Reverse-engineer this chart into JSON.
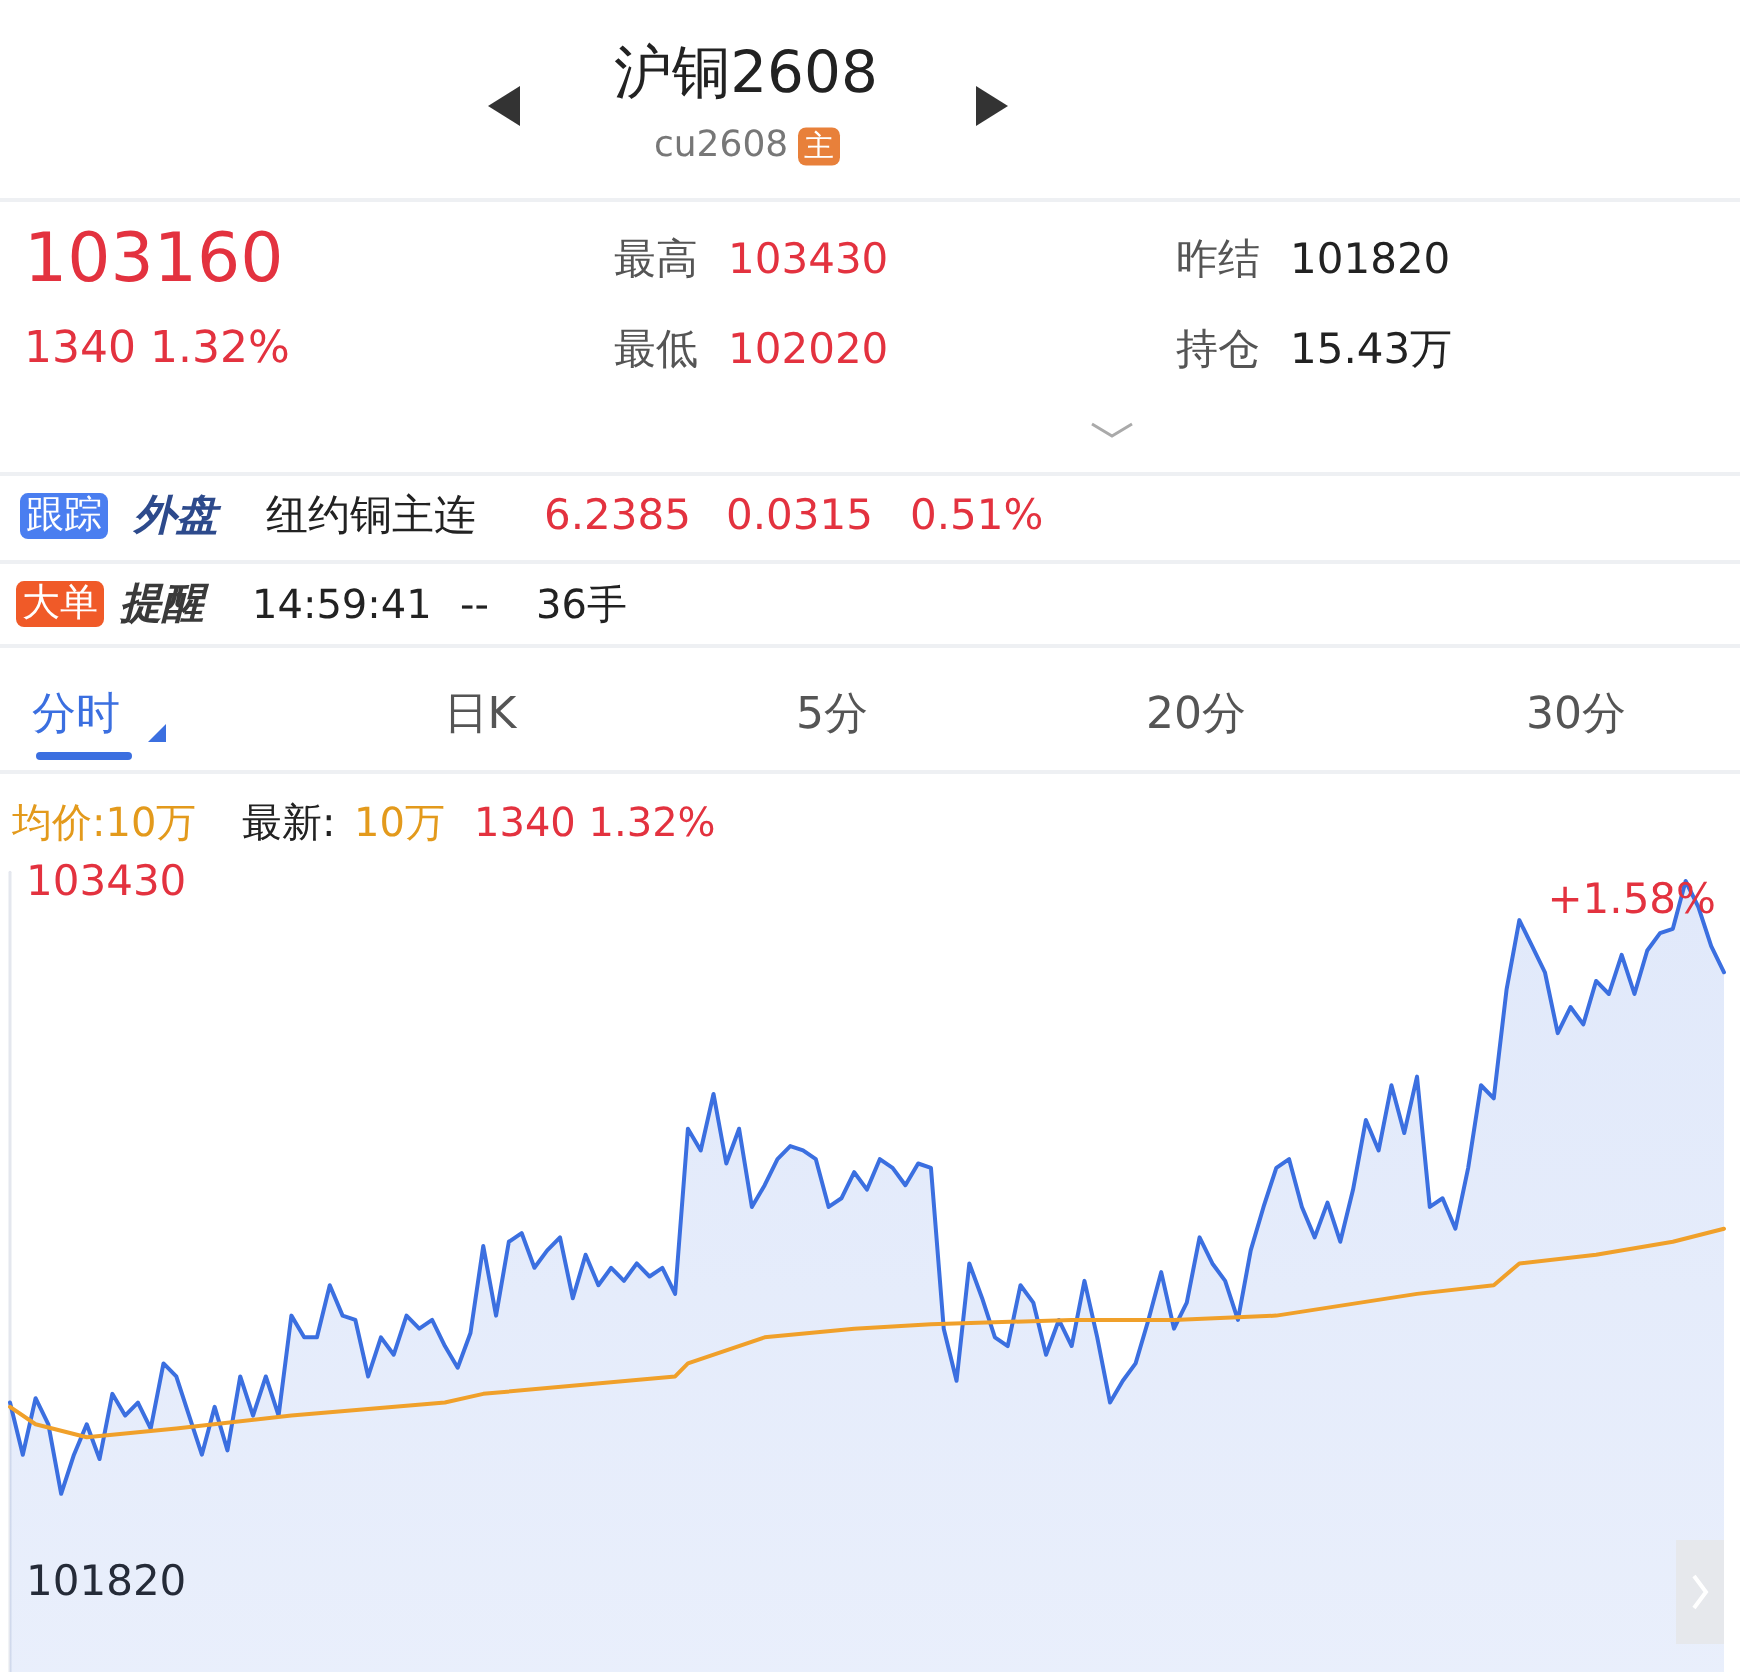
{
  "chart_data": {
    "type": "area",
    "title": "沪铜2608",
    "subtitle": "cu2608",
    "annotations": [
      "主",
      "103160",
      "1340 1.32%",
      "最高",
      "103430",
      "最低",
      "102020",
      "昨结",
      "101820",
      "持仓",
      "15.43万",
      "跟踪",
      "外盘",
      "纽约铜主连",
      "6.2385",
      "0.0315",
      "0.51%",
      "大单",
      "提醒",
      "14:59:41",
      "--",
      "36手",
      "分时",
      "日K",
      "5分",
      "20分",
      "30分",
      "均价:10万",
      "最新:",
      "10万",
      "1340 1.32%",
      "+1.58%"
    ],
    "categories": [
      null,
      null,
      null,
      null,
      null,
      null,
      null,
      null,
      null,
      null,
      null,
      null,
      null,
      null,
      null,
      null,
      null,
      null,
      null,
      null,
      null,
      null,
      null,
      null,
      null,
      null,
      null,
      null,
      null,
      null,
      null,
      null,
      null,
      null,
      null,
      null,
      null,
      null,
      null,
      null,
      null,
      null,
      null,
      null,
      null,
      null,
      null,
      null,
      null,
      null,
      null,
      null,
      null,
      null,
      null,
      null,
      null,
      null,
      null,
      null,
      null,
      null,
      null,
      null,
      null,
      null,
      null,
      null,
      null,
      null,
      null,
      null,
      null,
      null,
      null,
      null,
      null,
      null,
      null,
      null,
      null,
      null,
      null,
      null,
      null,
      null,
      null,
      null,
      null,
      null,
      null,
      null,
      null,
      null,
      null,
      null,
      null,
      null,
      null,
      null,
      null,
      null,
      null,
      null,
      null,
      null,
      null,
      null,
      null,
      null,
      null,
      null,
      null,
      null,
      null,
      null,
      null,
      null,
      null,
      null,
      null,
      null,
      null,
      null,
      null,
      null,
      null,
      null,
      null,
      null,
      null,
      null,
      null,
      null,
      null
    ],
    "ylim": [
      101610,
      103450
    ],
    "yticks": [
      103430,
      101820
    ],
    "tick_labels": "y",
    "series": [
      {
        "type": "area",
        "color": "#3b6fe0",
        "values": [
          102230,
          102110,
          102240,
          102180,
          102020,
          102110,
          102180,
          102100,
          102250,
          102200,
          102230,
          102170,
          102320,
          102290,
          102200,
          102110,
          102220,
          102120,
          102290,
          102200,
          102290,
          102200,
          102430,
          102380,
          102380,
          102500,
          102430,
          102420,
          102290,
          102380,
          102340,
          102430,
          102400,
          102420,
          102360,
          102310,
          102390,
          102590,
          102430,
          102600,
          102620,
          102540,
          102580,
          102610,
          102470,
          102570,
          102500,
          102540,
          102510,
          102550,
          102520,
          102540,
          102480,
          102860,
          102810,
          102940,
          102780,
          102860,
          102680,
          102730,
          102790,
          102820,
          102810,
          102790,
          102680,
          102700,
          102760,
          102720,
          102790,
          102770,
          102730,
          102780,
          102770,
          102400,
          102280,
          102550,
          102470,
          102380,
          102360,
          102500,
          102460,
          102340,
          102420,
          102360,
          102510,
          102380,
          102230,
          102280,
          102320,
          102420,
          102530,
          102400,
          102460,
          102610,
          102550,
          102510,
          102420,
          102580,
          102680,
          102770,
          102790,
          102680,
          102610,
          102690,
          102600,
          102720,
          102880,
          102810,
          102960,
          102850,
          102980,
          102680,
          102700,
          102630,
          102770,
          102960,
          102930,
          103180,
          103340,
          103280,
          103220,
          103080,
          103140,
          103100,
          103200,
          103170,
          103260,
          103170,
          103270,
          103310,
          103320,
          103430,
          103370,
          103280,
          103220
        ]
      },
      {
        "type": "line",
        "color": "#f0a02a",
        "values": [
          102220,
          null,
          102180,
          null,
          null,
          null,
          102150,
          null,
          null,
          null,
          null,
          null,
          null,
          102170,
          null,
          null,
          null,
          null,
          null,
          null,
          null,
          null,
          102200,
          null,
          null,
          null,
          null,
          null,
          null,
          null,
          null,
          null,
          null,
          null,
          102230,
          null,
          null,
          102250,
          null,
          null,
          null,
          null,
          null,
          null,
          null,
          null,
          null,
          null,
          null,
          null,
          null,
          null,
          102290,
          102320,
          null,
          null,
          null,
          null,
          null,
          102380,
          null,
          null,
          null,
          null,
          null,
          null,
          102400,
          null,
          null,
          null,
          null,
          null,
          102410,
          null,
          null,
          null,
          null,
          null,
          null,
          null,
          null,
          null,
          null,
          102420,
          null,
          null,
          null,
          null,
          null,
          null,
          null,
          102420,
          null,
          null,
          null,
          null,
          null,
          null,
          null,
          102430,
          null,
          null,
          null,
          null,
          null,
          null,
          null,
          null,
          null,
          null,
          102480,
          null,
          null,
          null,
          null,
          null,
          102500,
          null,
          102550,
          null,
          null,
          null,
          null,
          null,
          102570,
          null,
          null,
          null,
          null,
          null,
          102600,
          null,
          null,
          null,
          102630
        ]
      }
    ]
  }
}
